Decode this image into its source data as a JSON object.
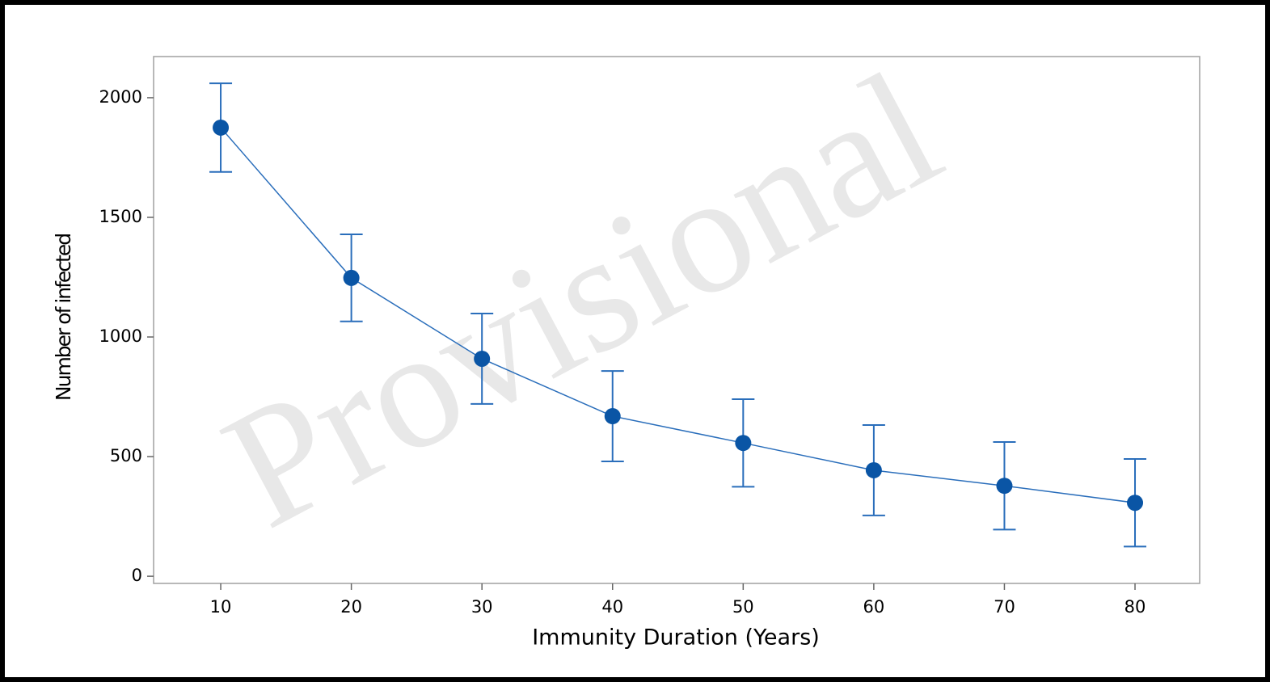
{
  "chart_data": {
    "type": "line",
    "xlabel": "Immunity Duration (Years)",
    "ylabel": "Number of infected",
    "watermark": "Provisional",
    "x": [
      10,
      20,
      30,
      40,
      50,
      60,
      70,
      80
    ],
    "values": [
      1875,
      1247,
      909,
      669,
      557,
      443,
      378,
      307
    ],
    "errors": [
      185,
      182,
      189,
      189,
      183,
      189,
      183,
      183
    ],
    "color": "#2a6ebb",
    "marker_color": "#0a55a5",
    "xlim": [
      4.86,
      84.95
    ],
    "ylim": [
      -30,
      2172
    ],
    "xticks": [
      10,
      20,
      30,
      40,
      50,
      60,
      70,
      80
    ],
    "yticks": [
      0,
      500,
      1000,
      1500,
      2000
    ]
  }
}
